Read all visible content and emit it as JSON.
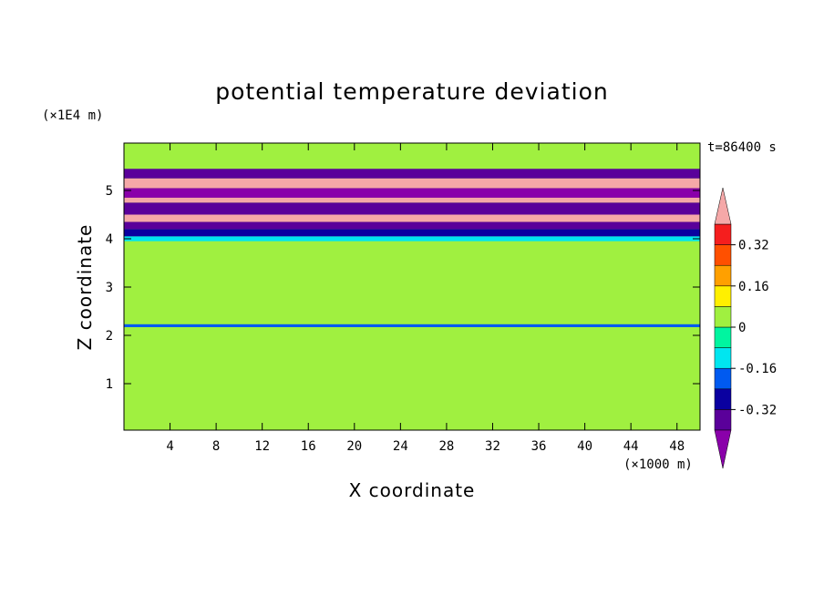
{
  "chart_data": {
    "type": "heatmap",
    "title": "potential temperature deviation",
    "xlabel": "X coordinate",
    "ylabel": "Z coordinate",
    "x_unit": "(×1000 m)",
    "y_unit": "(×1E4 m)",
    "time_label": "t=86400 s",
    "xlim": [
      0,
      50
    ],
    "ylim": [
      0,
      6
    ],
    "x_ticks": [
      4,
      8,
      12,
      16,
      20,
      24,
      28,
      32,
      36,
      40,
      44,
      48
    ],
    "y_ticks": [
      1,
      2,
      3,
      4,
      5
    ],
    "colorbar": {
      "levels": [
        -0.4,
        -0.32,
        -0.24,
        -0.16,
        -0.08,
        0,
        0.08,
        0.16,
        0.24,
        0.32,
        0.4
      ],
      "labels": [
        "-0.32",
        "-0.16",
        "0",
        "0.16",
        "0.32"
      ],
      "label_values": [
        -0.32,
        -0.16,
        0,
        0.16,
        0.32
      ],
      "colors": [
        "#5a009a",
        "#0a00a0",
        "#005af0",
        "#00e6f0",
        "#00f5a0",
        "#a0f040",
        "#fff000",
        "#ffa000",
        "#ff5000",
        "#f51e1e",
        "#f5a8a8",
        "#8a00aa"
      ],
      "extend": "both"
    },
    "bands": [
      {
        "z_low": 0,
        "z_high": 0.15,
        "value": 0.04
      },
      {
        "z_low": 0.15,
        "z_high": 3.8,
        "value": 0
      },
      {
        "z_low": 2.17,
        "z_high": 2.23,
        "value": -0.2
      },
      {
        "z_low": 3.8,
        "z_high": 3.95,
        "value": 0.05
      },
      {
        "z_low": 3.95,
        "z_high": 4.05,
        "value": -0.12
      },
      {
        "z_low": 4.05,
        "z_high": 4.2,
        "value": -0.3
      },
      {
        "z_low": 4.2,
        "z_high": 4.35,
        "value": -0.35
      },
      {
        "z_low": 4.35,
        "z_high": 4.5,
        "value": 0.45
      },
      {
        "z_low": 4.5,
        "z_high": 4.75,
        "value": -0.4
      },
      {
        "z_low": 4.75,
        "z_high": 4.85,
        "value": 0.45
      },
      {
        "z_low": 4.85,
        "z_high": 5.05,
        "value": -0.42
      },
      {
        "z_low": 5.05,
        "z_high": 5.25,
        "value": 0.45
      },
      {
        "z_low": 5.25,
        "z_high": 5.45,
        "value": -0.38
      },
      {
        "z_low": 5.45,
        "z_high": 5.95,
        "value": 0.03
      }
    ]
  }
}
